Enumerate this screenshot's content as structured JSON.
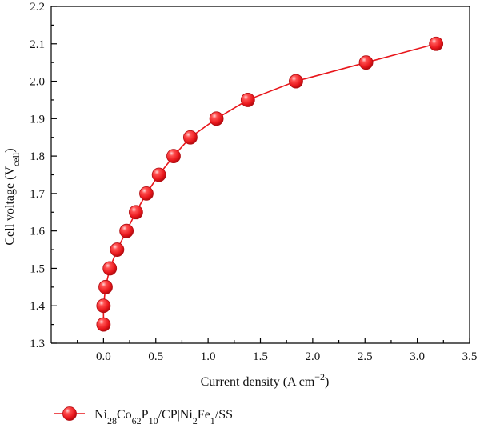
{
  "chart_data": {
    "type": "line",
    "title": "",
    "xlabel": "Current density (A cm⁻²)",
    "xlabel_parts": {
      "main": "Current density (A cm",
      "sup": "−2",
      "end": ")"
    },
    "ylabel": "Cell voltage (Vcell)",
    "ylabel_parts": {
      "main": "Cell voltage (V",
      "sub": "cell",
      "end": ")"
    },
    "xlim": [
      -0.5,
      3.5
    ],
    "ylim": [
      1.3,
      2.2
    ],
    "xticks": [
      0.0,
      0.5,
      1.0,
      1.5,
      2.0,
      2.5,
      3.0,
      3.5
    ],
    "yticks": [
      1.3,
      1.4,
      1.5,
      1.6,
      1.7,
      1.8,
      1.9,
      2.0,
      2.1,
      2.2
    ],
    "xtick_labels": [
      "0.0",
      "0.5",
      "1.0",
      "1.5",
      "2.0",
      "2.5",
      "3.0",
      "3.5"
    ],
    "ytick_labels": [
      "1.3",
      "1.4",
      "1.5",
      "1.6",
      "1.7",
      "1.8",
      "1.9",
      "2.0",
      "2.1",
      "2.2"
    ],
    "grid": false,
    "legend_position": "bottom",
    "series": [
      {
        "name": "Ni28Co62P10/CP|Ni2Fe1/SS",
        "name_parts": [
          {
            "t": "Ni",
            "s": ""
          },
          {
            "t": "28",
            "s": "sub"
          },
          {
            "t": "Co",
            "s": ""
          },
          {
            "t": "62",
            "s": "sub"
          },
          {
            "t": "P",
            "s": ""
          },
          {
            "t": "10",
            "s": "sub"
          },
          {
            "t": "/CP|Ni",
            "s": ""
          },
          {
            "t": "2",
            "s": "sub"
          },
          {
            "t": "Fe",
            "s": ""
          },
          {
            "t": "1",
            "s": "sub"
          },
          {
            "t": "/SS",
            "s": ""
          }
        ],
        "color": "#e8161b",
        "marker": "circle",
        "x": [
          0.0,
          0.0,
          0.02,
          0.06,
          0.13,
          0.22,
          0.31,
          0.41,
          0.53,
          0.67,
          0.83,
          1.08,
          1.38,
          1.84,
          2.51,
          3.18
        ],
        "y": [
          1.35,
          1.4,
          1.45,
          1.5,
          1.55,
          1.6,
          1.65,
          1.7,
          1.75,
          1.8,
          1.85,
          1.9,
          1.95,
          2.0,
          2.05,
          2.1
        ]
      }
    ]
  }
}
